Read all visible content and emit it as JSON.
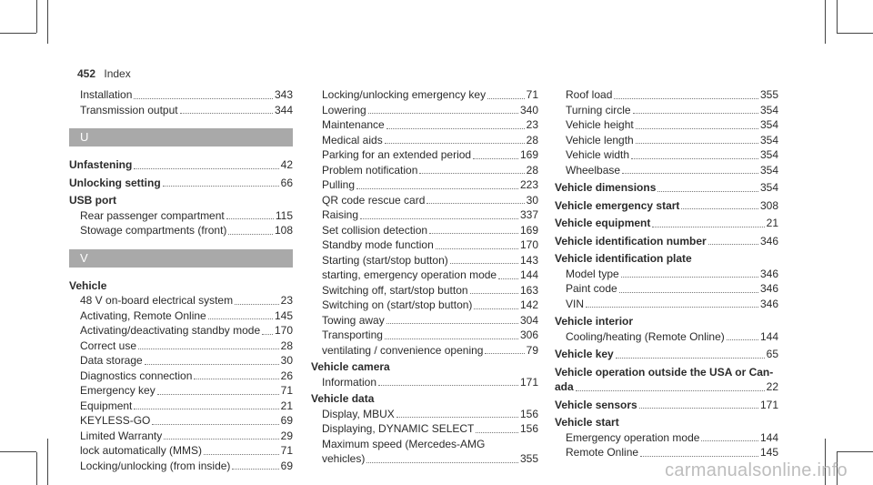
{
  "header": {
    "page_number": "452",
    "title": "Index"
  },
  "col1": {
    "top_entries": [
      {
        "label": "Installation",
        "page": "343"
      },
      {
        "label": "Transmission output",
        "page": "344"
      }
    ],
    "section_u": "U",
    "unfastening": {
      "label": "Unfastening",
      "page": "42"
    },
    "unlocking": {
      "label": "Unlocking setting",
      "page": "66"
    },
    "usb": {
      "heading": "USB port",
      "items": [
        {
          "label": "Rear passenger compartment",
          "page": "115"
        },
        {
          "label": "Stowage compartments (front)",
          "page": "108"
        }
      ]
    },
    "section_v": "V",
    "vehicle": {
      "heading": "Vehicle",
      "items": [
        {
          "label": "48 V on-board electrical system",
          "page": "23"
        },
        {
          "label": "Activating, Remote Online",
          "page": "145"
        },
        {
          "label": "Activating/deactivating standby mode",
          "page": "170"
        },
        {
          "label": "Correct use",
          "page": "28"
        },
        {
          "label": "Data storage",
          "page": "30"
        },
        {
          "label": "Diagnostics connection",
          "page": "26"
        },
        {
          "label": "Emergency key",
          "page": "71"
        },
        {
          "label": "Equipment",
          "page": "21"
        },
        {
          "label": "KEYLESS-GO",
          "page": "69"
        },
        {
          "label": "Limited Warranty",
          "page": "29"
        },
        {
          "label": "lock automatically (MMS)",
          "page": "71"
        },
        {
          "label": "Locking/unlocking (from inside)",
          "page": "69"
        }
      ]
    }
  },
  "col2": {
    "top_entries": [
      {
        "label": "Locking/unlocking emergency key",
        "page": "71"
      },
      {
        "label": "Lowering",
        "page": "340"
      },
      {
        "label": "Maintenance",
        "page": "23"
      },
      {
        "label": "Medical aids",
        "page": "28"
      },
      {
        "label": "Parking for an extended period",
        "page": "169"
      },
      {
        "label": "Problem notification",
        "page": "28"
      },
      {
        "label": "Pulling",
        "page": "223"
      },
      {
        "label": "QR code rescue card",
        "page": "30"
      },
      {
        "label": "Raising",
        "page": "337"
      },
      {
        "label": "Set collision detection",
        "page": "169"
      },
      {
        "label": "Standby mode function",
        "page": "170"
      },
      {
        "label": "Starting (start/stop button)",
        "page": "143"
      },
      {
        "label": "starting, emergency operation mode",
        "page": "144"
      },
      {
        "label": "Switching off, start/stop button",
        "page": "163"
      },
      {
        "label": "Switching on (start/stop button)",
        "page": "142"
      },
      {
        "label": "Towing away",
        "page": "304"
      },
      {
        "label": "Transporting",
        "page": "306"
      },
      {
        "label": "ventilating / convenience opening",
        "page": "79"
      }
    ],
    "camera": {
      "heading": "Vehicle camera",
      "items": [
        {
          "label": "Information",
          "page": "171"
        }
      ]
    },
    "data": {
      "heading": "Vehicle data",
      "items": [
        {
          "label": "Display, MBUX",
          "page": "156"
        },
        {
          "label": "Displaying, DYNAMIC SELECT",
          "page": "156"
        }
      ],
      "max_speed_line1": "Maximum speed (Mercedes-AMG",
      "max_speed_line2": {
        "label": "vehicles)",
        "page": "355"
      }
    }
  },
  "col3": {
    "top_entries": [
      {
        "label": "Roof load",
        "page": "355"
      },
      {
        "label": "Turning circle",
        "page": "354"
      },
      {
        "label": "Vehicle height",
        "page": "354"
      },
      {
        "label": "Vehicle length",
        "page": "354"
      },
      {
        "label": "Vehicle width",
        "page": "354"
      },
      {
        "label": "Wheelbase",
        "page": "354"
      }
    ],
    "dimensions": {
      "label": "Vehicle dimensions",
      "page": "354"
    },
    "emergency_start": {
      "label": "Vehicle emergency start",
      "page": "308"
    },
    "equipment": {
      "label": "Vehicle equipment",
      "page": "21"
    },
    "id_number": {
      "label": "Vehicle identification number",
      "page": "346"
    },
    "id_plate": {
      "heading": "Vehicle identification plate",
      "items": [
        {
          "label": "Model type",
          "page": "346"
        },
        {
          "label": "Paint code",
          "page": "346"
        },
        {
          "label": "VIN",
          "page": "346"
        }
      ]
    },
    "interior": {
      "heading": "Vehicle interior",
      "items": [
        {
          "label": "Cooling/heating (Remote Online)",
          "page": "144"
        }
      ]
    },
    "key": {
      "label": "Vehicle key",
      "page": "65"
    },
    "operation_outside": {
      "line1": "Vehicle operation outside the USA or Can-",
      "line2": "ada",
      "page": "22"
    },
    "sensors": {
      "label": "Vehicle sensors",
      "page": "171"
    },
    "start": {
      "heading": "Vehicle start",
      "items": [
        {
          "label": "Emergency operation mode",
          "page": "144"
        },
        {
          "label": "Remote Online",
          "page": "145"
        }
      ]
    }
  },
  "watermark": "carmanualsonline.info"
}
